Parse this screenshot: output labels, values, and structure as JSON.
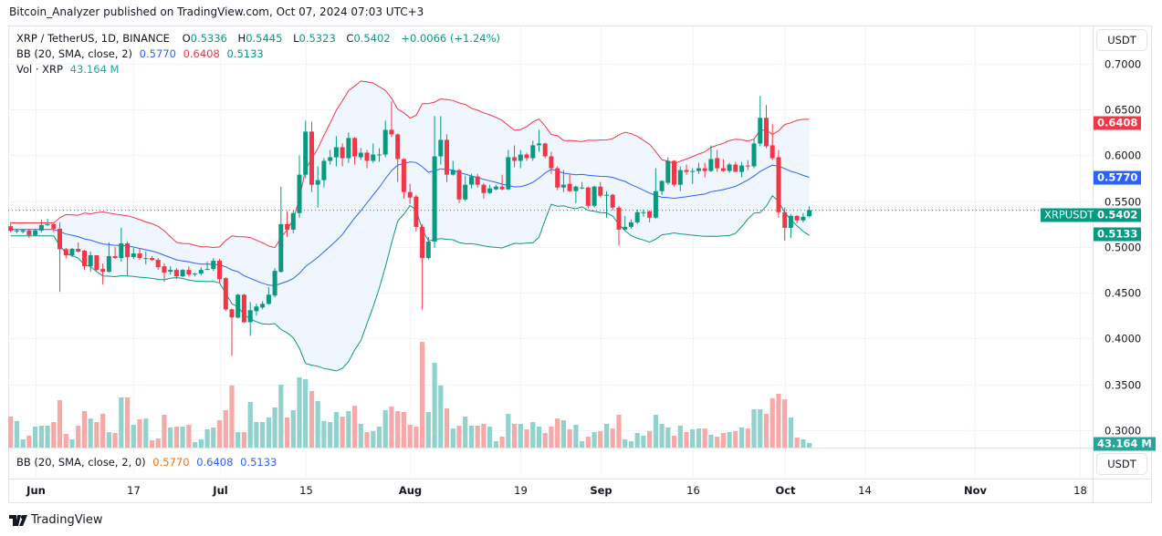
{
  "publisher_line": "Bitcoin_Analyzer published on TradingView.com, Oct 07, 2024 07:03 UTC+3",
  "legend": {
    "symbol": "XRP / TetherUS, 1D, BINANCE",
    "o_label": "O",
    "o": "0.5336",
    "h_label": "H",
    "h": "0.5445",
    "l_label": "L",
    "l": "0.5323",
    "c_label": "C",
    "c": "0.5402",
    "change": "+0.0066 (+1.24%)",
    "bb_label": "BB (20, SMA, close, 2)",
    "bb_mid": "0.5770",
    "bb_upper": "0.6408",
    "bb_lower": "0.5133",
    "vol_label": "Vol · XRP",
    "vol": "43.164 M"
  },
  "indicator_pane": {
    "label": "BB (20, SMA, close, 2, 0)",
    "mid": "0.5770",
    "upper": "0.6408",
    "lower": "0.5133",
    "currency_button": "USDT"
  },
  "price_axis": {
    "currency_button": "USDT",
    "ticks": [
      "0.7000",
      "0.6500",
      "0.6000",
      "0.5500",
      "0.5000",
      "0.4500",
      "0.4000",
      "0.3500",
      "0.3000"
    ],
    "tags": {
      "upper": "0.6408",
      "mid": "0.5770",
      "last": "0.5402",
      "lower": "0.5133",
      "symbol": "XRPUSDT",
      "volume": "43.164 M"
    }
  },
  "time_axis": {
    "labels": [
      {
        "text": "Jun",
        "bold": true,
        "date": "2024-06-01"
      },
      {
        "text": "17",
        "bold": false,
        "date": "2024-06-17"
      },
      {
        "text": "Jul",
        "bold": true,
        "date": "2024-07-01"
      },
      {
        "text": "15",
        "bold": false,
        "date": "2024-07-15"
      },
      {
        "text": "Aug",
        "bold": true,
        "date": "2024-08-01"
      },
      {
        "text": "19",
        "bold": false,
        "date": "2024-08-19"
      },
      {
        "text": "Sep",
        "bold": true,
        "date": "2024-09-01"
      },
      {
        "text": "16",
        "bold": false,
        "date": "2024-09-16"
      },
      {
        "text": "Oct",
        "bold": true,
        "date": "2024-10-01"
      },
      {
        "text": "14",
        "bold": false,
        "date": "2024-10-14"
      },
      {
        "text": "Nov",
        "bold": true,
        "date": "2024-11-01"
      },
      {
        "text": "18",
        "bold": false,
        "date": "2024-11-18"
      }
    ]
  },
  "footer": {
    "brand": "TradingView"
  },
  "colors": {
    "up": "#089981",
    "down": "#f23645",
    "vol_up": "#92d2cc",
    "vol_down": "#f7a9a7",
    "bb_upper": "#f23645",
    "bb_mid": "#2962ff",
    "bb_lower": "#089981",
    "bb_fill": "#f0f6fd",
    "volume_tag": "#26a69a"
  },
  "chart_data": {
    "type": "candlestick",
    "symbol": "XRPUSDT",
    "interval": "1D",
    "first_date": "2024-05-28",
    "last_date": "2024-10-07",
    "ylim": [
      0.29,
      0.73
    ],
    "grid": true,
    "bollinger": {
      "length": 20,
      "source": "close",
      "mult": 2
    },
    "ohlc": [
      [
        0.5227,
        0.527,
        0.516,
        0.5177
      ],
      [
        0.518,
        0.52,
        0.515,
        0.518
      ],
      [
        0.5167,
        0.52,
        0.515,
        0.5183
      ],
      [
        0.518,
        0.52,
        0.51,
        0.513
      ],
      [
        0.513,
        0.52,
        0.512,
        0.518
      ],
      [
        0.518,
        0.53,
        0.516,
        0.524
      ],
      [
        0.524,
        0.531,
        0.523,
        0.525
      ],
      [
        0.525,
        0.527,
        0.516,
        0.52
      ],
      [
        0.52,
        0.527,
        0.451,
        0.4977
      ],
      [
        0.4977,
        0.499,
        0.488,
        0.491
      ],
      [
        0.491,
        0.499,
        0.489,
        0.498
      ],
      [
        0.498,
        0.505,
        0.494,
        0.495
      ],
      [
        0.496,
        0.497,
        0.475,
        0.479
      ],
      [
        0.479,
        0.495,
        0.473,
        0.491
      ],
      [
        0.491,
        0.491,
        0.474,
        0.475
      ],
      [
        0.476,
        0.482,
        0.459,
        0.473
      ],
      [
        0.473,
        0.505,
        0.472,
        0.49
      ],
      [
        0.49,
        0.5,
        0.487,
        0.488
      ],
      [
        0.488,
        0.521,
        0.484,
        0.504
      ],
      [
        0.504,
        0.506,
        0.469,
        0.489
      ],
      [
        0.489,
        0.499,
        0.487,
        0.493
      ],
      [
        0.493,
        0.499,
        0.486,
        0.488
      ],
      [
        0.488,
        0.495,
        0.481,
        0.488
      ],
      [
        0.488,
        0.49,
        0.485,
        0.486
      ],
      [
        0.486,
        0.488,
        0.475,
        0.478
      ],
      [
        0.479,
        0.482,
        0.462,
        0.472
      ],
      [
        0.473,
        0.479,
        0.47,
        0.475
      ],
      [
        0.475,
        0.477,
        0.465,
        0.468
      ],
      [
        0.468,
        0.476,
        0.467,
        0.475
      ],
      [
        0.475,
        0.479,
        0.468,
        0.47
      ],
      [
        0.47,
        0.472,
        0.468,
        0.471
      ],
      [
        0.471,
        0.478,
        0.469,
        0.475
      ],
      [
        0.476,
        0.484,
        0.475,
        0.476
      ],
      [
        0.476,
        0.488,
        0.474,
        0.485
      ],
      [
        0.485,
        0.487,
        0.461,
        0.465
      ],
      [
        0.466,
        0.467,
        0.43,
        0.432
      ],
      [
        0.432,
        0.433,
        0.381,
        0.423
      ],
      [
        0.423,
        0.449,
        0.422,
        0.448
      ],
      [
        0.448,
        0.449,
        0.417,
        0.418
      ],
      [
        0.418,
        0.44,
        0.403,
        0.431
      ],
      [
        0.43,
        0.438,
        0.425,
        0.435
      ],
      [
        0.434,
        0.441,
        0.432,
        0.438
      ],
      [
        0.438,
        0.456,
        0.437,
        0.448
      ],
      [
        0.447,
        0.477,
        0.445,
        0.474
      ],
      [
        0.473,
        0.566,
        0.472,
        0.525
      ],
      [
        0.525,
        0.539,
        0.511,
        0.519
      ],
      [
        0.519,
        0.54,
        0.515,
        0.537
      ],
      [
        0.537,
        0.6,
        0.532,
        0.579
      ],
      [
        0.579,
        0.638,
        0.575,
        0.626
      ],
      [
        0.626,
        0.637,
        0.56,
        0.568
      ],
      [
        0.568,
        0.588,
        0.543,
        0.573
      ],
      [
        0.573,
        0.597,
        0.565,
        0.594
      ],
      [
        0.594,
        0.606,
        0.59,
        0.598
      ],
      [
        0.598,
        0.621,
        0.588,
        0.609
      ],
      [
        0.609,
        0.613,
        0.588,
        0.597
      ],
      [
        0.597,
        0.625,
        0.592,
        0.619
      ],
      [
        0.619,
        0.62,
        0.59,
        0.599
      ],
      [
        0.598,
        0.608,
        0.595,
        0.603
      ],
      [
        0.603,
        0.606,
        0.586,
        0.594
      ],
      [
        0.594,
        0.613,
        0.592,
        0.601
      ],
      [
        0.601,
        0.608,
        0.593,
        0.601
      ],
      [
        0.601,
        0.638,
        0.598,
        0.628
      ],
      [
        0.628,
        0.659,
        0.62,
        0.623
      ],
      [
        0.623,
        0.624,
        0.571,
        0.596
      ],
      [
        0.596,
        0.597,
        0.553,
        0.56
      ],
      [
        0.56,
        0.569,
        0.547,
        0.554
      ],
      [
        0.555,
        0.557,
        0.517,
        0.522
      ],
      [
        0.522,
        0.525,
        0.432,
        0.488
      ],
      [
        0.488,
        0.511,
        0.486,
        0.506
      ],
      [
        0.506,
        0.643,
        0.499,
        0.599
      ],
      [
        0.599,
        0.643,
        0.59,
        0.617
      ],
      [
        0.617,
        0.623,
        0.571,
        0.579
      ],
      [
        0.579,
        0.594,
        0.578,
        0.584
      ],
      [
        0.584,
        0.585,
        0.548,
        0.552
      ],
      [
        0.552,
        0.578,
        0.55,
        0.568
      ],
      [
        0.568,
        0.58,
        0.564,
        0.577
      ],
      [
        0.577,
        0.58,
        0.565,
        0.568
      ],
      [
        0.568,
        0.57,
        0.553,
        0.559
      ],
      [
        0.559,
        0.568,
        0.558,
        0.564
      ],
      [
        0.563,
        0.568,
        0.562,
        0.566
      ],
      [
        0.566,
        0.579,
        0.562,
        0.563
      ],
      [
        0.563,
        0.606,
        0.562,
        0.598
      ],
      [
        0.598,
        0.611,
        0.587,
        0.594
      ],
      [
        0.594,
        0.606,
        0.586,
        0.601
      ],
      [
        0.601,
        0.603,
        0.594,
        0.597
      ],
      [
        0.597,
        0.616,
        0.594,
        0.611
      ],
      [
        0.611,
        0.628,
        0.604,
        0.613
      ],
      [
        0.613,
        0.614,
        0.597,
        0.599
      ],
      [
        0.599,
        0.604,
        0.58,
        0.586
      ],
      [
        0.586,
        0.588,
        0.562,
        0.565
      ],
      [
        0.565,
        0.584,
        0.56,
        0.568
      ],
      [
        0.569,
        0.579,
        0.56,
        0.561
      ],
      [
        0.561,
        0.567,
        0.548,
        0.566
      ],
      [
        0.565,
        0.571,
        0.563,
        0.565
      ],
      [
        0.565,
        0.566,
        0.542,
        0.545
      ],
      [
        0.545,
        0.567,
        0.543,
        0.566
      ],
      [
        0.566,
        0.571,
        0.554,
        0.556
      ],
      [
        0.557,
        0.561,
        0.532,
        0.557
      ],
      [
        0.557,
        0.558,
        0.54,
        0.543
      ],
      [
        0.543,
        0.545,
        0.502,
        0.519
      ],
      [
        0.519,
        0.534,
        0.519,
        0.522
      ],
      [
        0.522,
        0.53,
        0.52,
        0.527
      ],
      [
        0.527,
        0.541,
        0.525,
        0.538
      ],
      [
        0.538,
        0.541,
        0.533,
        0.538
      ],
      [
        0.539,
        0.54,
        0.527,
        0.532
      ],
      [
        0.532,
        0.586,
        0.531,
        0.561
      ],
      [
        0.561,
        0.573,
        0.557,
        0.572
      ],
      [
        0.57,
        0.598,
        0.568,
        0.594
      ],
      [
        0.594,
        0.595,
        0.566,
        0.568
      ],
      [
        0.568,
        0.588,
        0.561,
        0.584
      ],
      [
        0.584,
        0.59,
        0.579,
        0.582
      ],
      [
        0.583,
        0.586,
        0.569,
        0.583
      ],
      [
        0.583,
        0.592,
        0.58,
        0.586
      ],
      [
        0.586,
        0.592,
        0.576,
        0.583
      ],
      [
        0.583,
        0.611,
        0.582,
        0.596
      ],
      [
        0.597,
        0.606,
        0.582,
        0.586
      ],
      [
        0.586,
        0.596,
        0.582,
        0.583
      ],
      [
        0.583,
        0.592,
        0.581,
        0.59
      ],
      [
        0.59,
        0.593,
        0.582,
        0.582
      ],
      [
        0.582,
        0.593,
        0.576,
        0.589
      ],
      [
        0.589,
        0.595,
        0.584,
        0.588
      ],
      [
        0.588,
        0.618,
        0.586,
        0.613
      ],
      [
        0.613,
        0.665,
        0.61,
        0.641
      ],
      [
        0.641,
        0.655,
        0.608,
        0.61
      ],
      [
        0.611,
        0.634,
        0.595,
        0.597
      ],
      [
        0.598,
        0.606,
        0.532,
        0.538
      ],
      [
        0.538,
        0.543,
        0.507,
        0.521
      ],
      [
        0.521,
        0.536,
        0.51,
        0.534
      ],
      [
        0.534,
        0.535,
        0.526,
        0.529
      ],
      [
        0.529,
        0.537,
        0.527,
        0.533
      ],
      [
        0.5336,
        0.5445,
        0.5323,
        0.5402
      ]
    ],
    "volume_millions": [
      294,
      251,
      78,
      112,
      199,
      207,
      207,
      242,
      449,
      130,
      78,
      207,
      346,
      276,
      242,
      320,
      147,
      138,
      475,
      475,
      216,
      268,
      276,
      69,
      86,
      311,
      190,
      199,
      199,
      216,
      52,
      78,
      173,
      190,
      259,
      354,
      588,
      147,
      147,
      432,
      242,
      242,
      285,
      380,
      596,
      285,
      354,
      665,
      648,
      536,
      441,
      251,
      242,
      337,
      294,
      346,
      397,
      225,
      147,
      156,
      199,
      354,
      389,
      346,
      337,
      216,
      199,
      1002,
      337,
      804,
      588,
      372,
      181,
      207,
      294,
      207,
      207,
      225,
      199,
      60,
      104,
      320,
      225,
      225,
      173,
      242,
      199,
      138,
      199,
      276,
      259,
      173,
      216,
      60,
      104,
      147,
      156,
      225,
      181,
      311,
      78,
      60,
      138,
      112,
      156,
      311,
      225,
      190,
      112,
      207,
      147,
      173,
      181,
      181,
      121,
      104,
      138,
      147,
      156,
      190,
      181,
      363,
      363,
      320,
      467,
      510,
      458,
      285,
      95,
      78,
      43.164
    ]
  }
}
